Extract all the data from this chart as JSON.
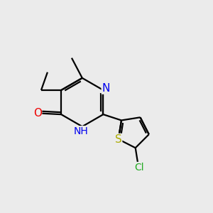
{
  "background_color": "#ebebeb",
  "figsize": [
    3.0,
    3.0
  ],
  "dpi": 100,
  "atom_colors": {
    "N": "#0000ee",
    "O": "#ee0000",
    "S": "#aaaa00",
    "Cl": "#22aa22",
    "C": "#000000"
  },
  "bond_color": "#000000",
  "font_size": 10
}
